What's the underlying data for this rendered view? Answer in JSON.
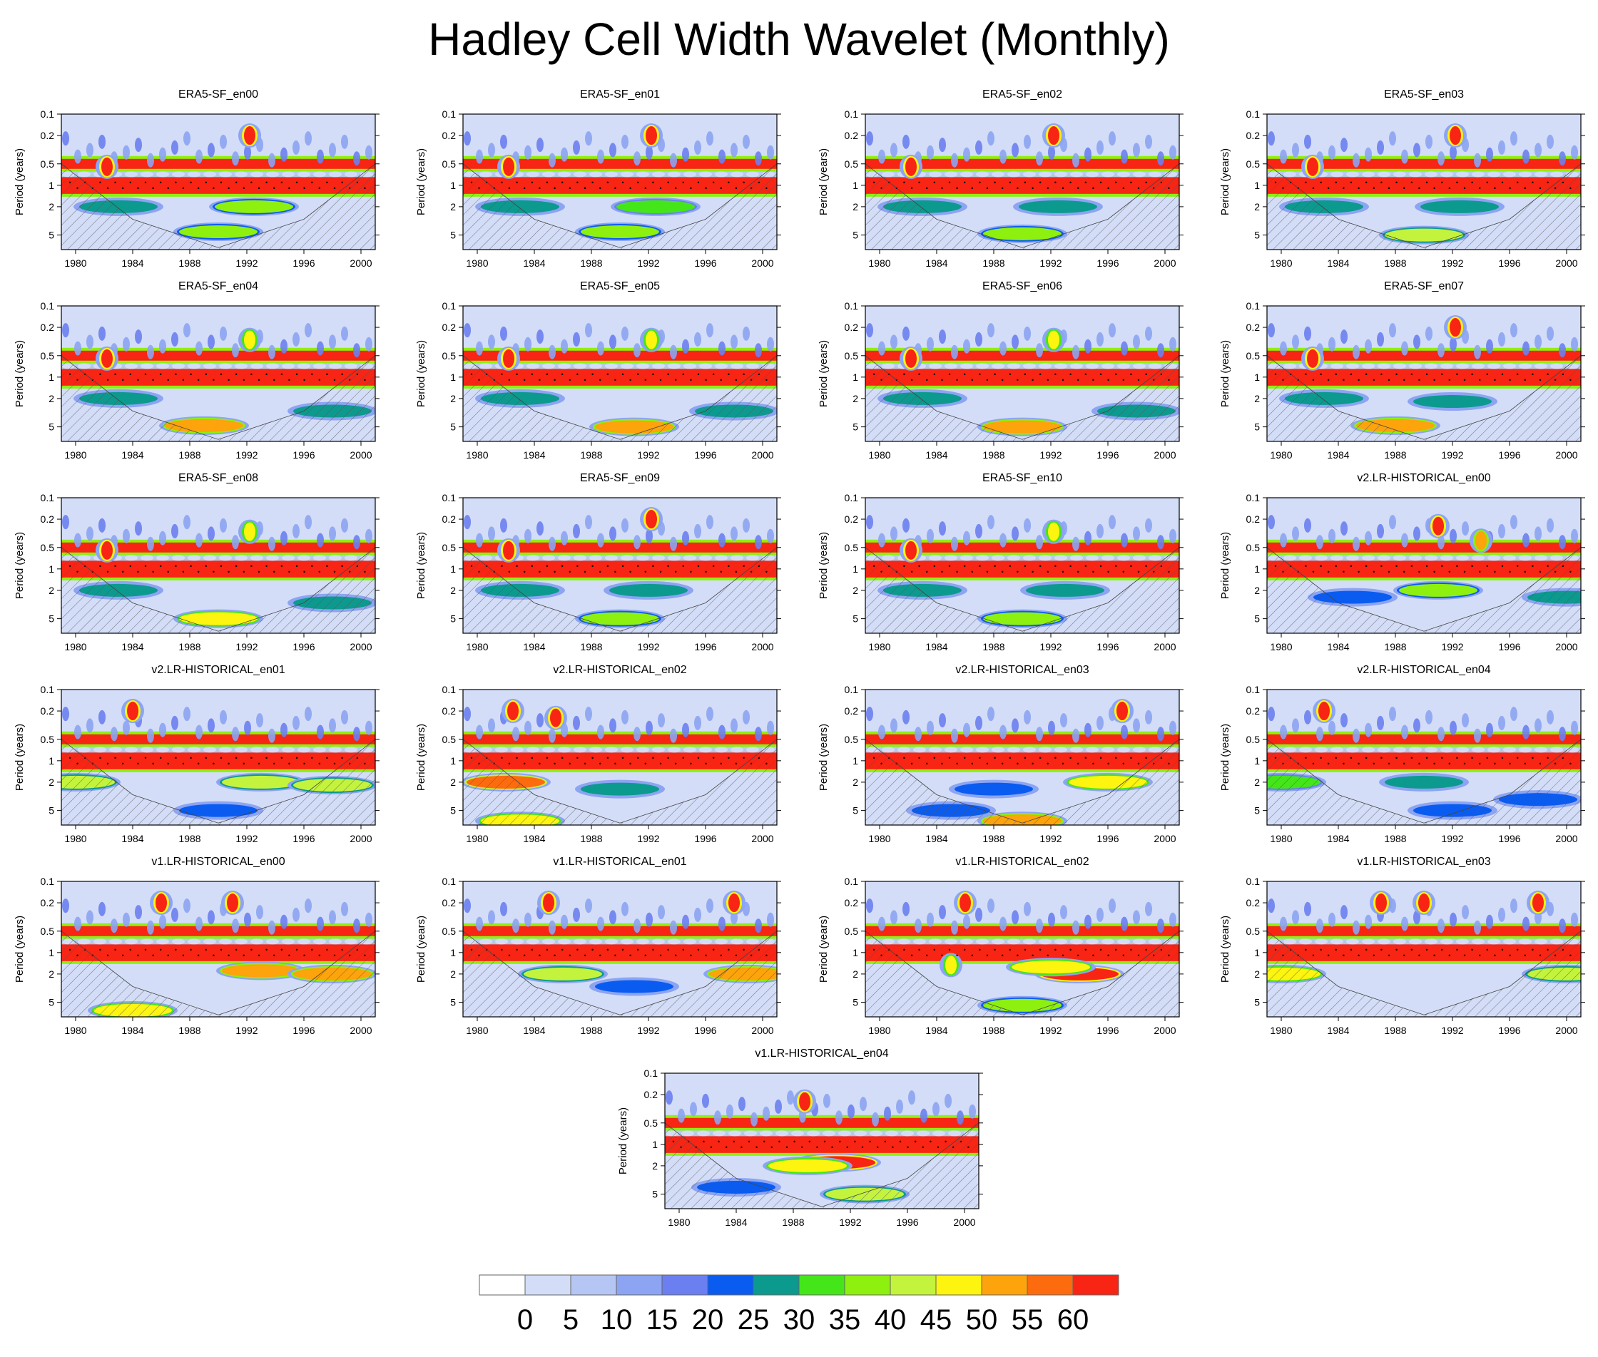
{
  "title": "Hadley Cell Width Wavelet (Monthly)",
  "chart_data": {
    "type": "heatmap",
    "description_axes": {
      "ylabel": "Period (years)",
      "yticks": [
        "0.1",
        "0.2",
        "0.5",
        "1",
        "2",
        "5"
      ],
      "xticks": [
        "1980",
        "1984",
        "1988",
        "1992",
        "1996",
        "2000"
      ],
      "xlim": [
        1979,
        2001
      ],
      "ylim": [
        0.1,
        8
      ]
    },
    "panels": [
      {
        "title": "ERA5-SF_en00",
        "features": [
          [
            1982.2,
            0.55,
            60
          ],
          [
            1992.2,
            0.2,
            60
          ],
          [
            1992.5,
            2.0,
            35
          ],
          [
            1983,
            2.0,
            25
          ],
          [
            1990,
            4.5,
            38
          ]
        ]
      },
      {
        "title": "ERA5-SF_en01",
        "features": [
          [
            1982.2,
            0.55,
            60
          ],
          [
            1992.2,
            0.2,
            60
          ],
          [
            1992.5,
            2.0,
            30
          ],
          [
            1983,
            2.0,
            25
          ],
          [
            1990,
            4.5,
            38
          ]
        ]
      },
      {
        "title": "ERA5-SF_en02",
        "features": [
          [
            1982.2,
            0.55,
            60
          ],
          [
            1992.2,
            0.2,
            60
          ],
          [
            1992.5,
            2.0,
            25
          ],
          [
            1983,
            2.0,
            25
          ],
          [
            1990,
            4.8,
            38
          ]
        ]
      },
      {
        "title": "ERA5-SF_en03",
        "features": [
          [
            1982.2,
            0.55,
            60
          ],
          [
            1992.2,
            0.2,
            60
          ],
          [
            1992.5,
            2.0,
            25
          ],
          [
            1983,
            2.0,
            25
          ],
          [
            1990,
            5.0,
            42
          ]
        ]
      },
      {
        "title": "ERA5-SF_en04",
        "features": [
          [
            1982.2,
            0.55,
            60
          ],
          [
            1992.2,
            0.3,
            45
          ],
          [
            1983,
            2.0,
            25
          ],
          [
            1989,
            4.8,
            50
          ],
          [
            1998,
            3.0,
            25
          ]
        ]
      },
      {
        "title": "ERA5-SF_en05",
        "features": [
          [
            1982.2,
            0.55,
            60
          ],
          [
            1992.2,
            0.3,
            45
          ],
          [
            1983,
            2.0,
            25
          ],
          [
            1991,
            5.0,
            50
          ],
          [
            1998,
            3.0,
            25
          ]
        ]
      },
      {
        "title": "ERA5-SF_en06",
        "features": [
          [
            1982.2,
            0.55,
            60
          ],
          [
            1992.2,
            0.3,
            45
          ],
          [
            1983,
            2.0,
            25
          ],
          [
            1990,
            5.0,
            50
          ],
          [
            1998,
            3.0,
            25
          ]
        ]
      },
      {
        "title": "ERA5-SF_en07",
        "features": [
          [
            1982.2,
            0.55,
            60
          ],
          [
            1992.2,
            0.2,
            60
          ],
          [
            1983,
            2.0,
            25
          ],
          [
            1988,
            4.8,
            50
          ],
          [
            1992,
            2.2,
            25
          ]
        ]
      },
      {
        "title": "ERA5-SF_en08",
        "features": [
          [
            1982.2,
            0.55,
            60
          ],
          [
            1992.2,
            0.3,
            45
          ],
          [
            1983,
            2.0,
            25
          ],
          [
            1990,
            5.0,
            45
          ],
          [
            1998,
            3.0,
            25
          ]
        ]
      },
      {
        "title": "ERA5-SF_en09",
        "features": [
          [
            1982.2,
            0.55,
            60
          ],
          [
            1992.2,
            0.2,
            60
          ],
          [
            1992,
            2.0,
            25
          ],
          [
            1983,
            2.0,
            25
          ],
          [
            1990,
            5.0,
            38
          ]
        ]
      },
      {
        "title": "ERA5-SF_en10",
        "features": [
          [
            1982.2,
            0.55,
            60
          ],
          [
            1992.2,
            0.3,
            45
          ],
          [
            1993,
            2.0,
            25
          ],
          [
            1983,
            2.0,
            25
          ],
          [
            1990,
            5.0,
            38
          ]
        ]
      },
      {
        "title": "v2.LR-HISTORICAL_en00",
        "features": [
          [
            1991,
            0.25,
            60
          ],
          [
            1994,
            0.4,
            50
          ],
          [
            1991,
            2.0,
            35
          ],
          [
            1985,
            2.5,
            20
          ],
          [
            2000,
            2.5,
            25
          ]
        ]
      },
      {
        "title": "v2.LR-HISTORICAL_en01",
        "features": [
          [
            1984,
            0.2,
            60
          ],
          [
            1993,
            2.0,
            40
          ],
          [
            1980,
            2.0,
            40
          ],
          [
            1998,
            2.2,
            40
          ],
          [
            1990,
            5.0,
            20
          ]
        ]
      },
      {
        "title": "v2.LR-HISTORICAL_en02",
        "features": [
          [
            1982.5,
            0.2,
            60
          ],
          [
            1985.5,
            0.25,
            60
          ],
          [
            1982,
            2.0,
            55
          ],
          [
            1990,
            2.5,
            25
          ],
          [
            1983,
            7.0,
            45
          ]
        ]
      },
      {
        "title": "v2.LR-HISTORICAL_en03",
        "features": [
          [
            1997,
            0.2,
            60
          ],
          [
            1996,
            2.0,
            45
          ],
          [
            1990,
            7.0,
            50
          ],
          [
            1985,
            5.0,
            20
          ],
          [
            1988,
            2.5,
            20
          ]
        ]
      },
      {
        "title": "v2.LR-HISTORICAL_en04",
        "features": [
          [
            1983,
            0.2,
            60
          ],
          [
            1990,
            2.0,
            25
          ],
          [
            1980,
            2.0,
            30
          ],
          [
            1992,
            5.0,
            20
          ],
          [
            1998,
            3.5,
            20
          ]
        ]
      },
      {
        "title": "v1.LR-HISTORICAL_en00",
        "features": [
          [
            1986,
            0.2,
            60
          ],
          [
            1991,
            0.2,
            60
          ],
          [
            1993,
            1.8,
            50
          ],
          [
            1998,
            2.0,
            50
          ],
          [
            1984,
            6.5,
            45
          ]
        ]
      },
      {
        "title": "v1.LR-HISTORICAL_en01",
        "features": [
          [
            1985,
            0.2,
            60
          ],
          [
            1998,
            0.2,
            60
          ],
          [
            1999,
            2.0,
            50
          ],
          [
            1986,
            2.0,
            40
          ],
          [
            1991,
            3.0,
            20
          ]
        ]
      },
      {
        "title": "v1.LR-HISTORICAL_en02",
        "features": [
          [
            1986,
            0.2,
            60
          ],
          [
            1994,
            2.0,
            60
          ],
          [
            1992,
            1.6,
            45
          ],
          [
            1985,
            1.5,
            45
          ],
          [
            1990,
            5.5,
            35
          ]
        ]
      },
      {
        "title": "v1.LR-HISTORICAL_en03",
        "features": [
          [
            1987,
            0.2,
            60
          ],
          [
            1990,
            0.2,
            60
          ],
          [
            1998,
            0.2,
            60
          ],
          [
            2000,
            2.0,
            40
          ],
          [
            1980,
            2.0,
            45
          ]
        ]
      },
      {
        "title": "v1.LR-HISTORICAL_en04",
        "features": [
          [
            1988.8,
            0.25,
            60
          ],
          [
            1991,
            1.8,
            60
          ],
          [
            1989,
            2.0,
            45
          ],
          [
            1984,
            4.0,
            20
          ],
          [
            1993,
            5.0,
            40
          ]
        ]
      }
    ],
    "colorbar": {
      "levels": [
        "0",
        "5",
        "10",
        "15",
        "20",
        "25",
        "30",
        "35",
        "40",
        "45",
        "50",
        "55",
        "60"
      ],
      "colors": [
        "#ffffff",
        "#d3ddf7",
        "#b6c6f4",
        "#8ca4f2",
        "#6b7ff0",
        "#0a5cf0",
        "#0c9a8f",
        "#44e61a",
        "#8ef00f",
        "#c3f33c",
        "#fdf410",
        "#fda30c",
        "#fd6b0f",
        "#f82414"
      ]
    }
  }
}
